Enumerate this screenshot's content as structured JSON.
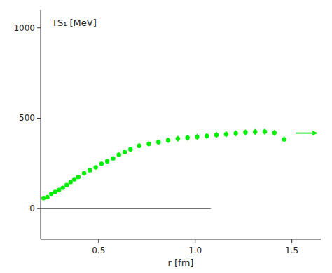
{
  "chart_data": {
    "type": "scatter",
    "title": "TS₁ [MeV]",
    "xlabel": "r [fm]",
    "xlim": [
      0.2,
      1.65
    ],
    "ylim": [
      -170,
      1100
    ],
    "xticks": [
      0.5,
      {
        "value": 1,
        "label": "1.0"
      },
      1.5
    ],
    "yticks": [
      0,
      500,
      1000
    ],
    "grid": false,
    "color": "#00EE00",
    "marker": "circle",
    "x": [
      0.215,
      0.235,
      0.255,
      0.275,
      0.295,
      0.315,
      0.335,
      0.355,
      0.375,
      0.395,
      0.425,
      0.455,
      0.485,
      0.515,
      0.545,
      0.575,
      0.605,
      0.635,
      0.665,
      0.71,
      0.76,
      0.81,
      0.86,
      0.91,
      0.96,
      1.01,
      1.06,
      1.11,
      1.16,
      1.21,
      1.26,
      1.31,
      1.36,
      1.41,
      1.46
    ],
    "values": [
      58,
      63,
      82,
      92,
      103,
      115,
      130,
      147,
      162,
      175,
      195,
      212,
      228,
      248,
      262,
      278,
      298,
      312,
      328,
      348,
      358,
      368,
      378,
      387,
      392,
      397,
      402,
      408,
      412,
      417,
      422,
      425,
      426,
      420,
      383
    ],
    "errors": [
      8,
      8,
      6,
      6,
      6,
      6,
      6,
      6,
      6,
      6,
      6,
      6,
      6,
      8,
      8,
      8,
      10,
      10,
      10,
      13,
      13,
      13,
      14,
      16,
      16,
      16,
      16,
      16,
      16,
      16,
      16,
      16,
      16,
      16,
      16
    ],
    "hline": {
      "y": 0,
      "x_start": 0.2,
      "x_end": 1.08,
      "color": "#444444"
    },
    "arrow": {
      "x_start": 1.52,
      "x_end": 1.63,
      "y": 418
    }
  }
}
